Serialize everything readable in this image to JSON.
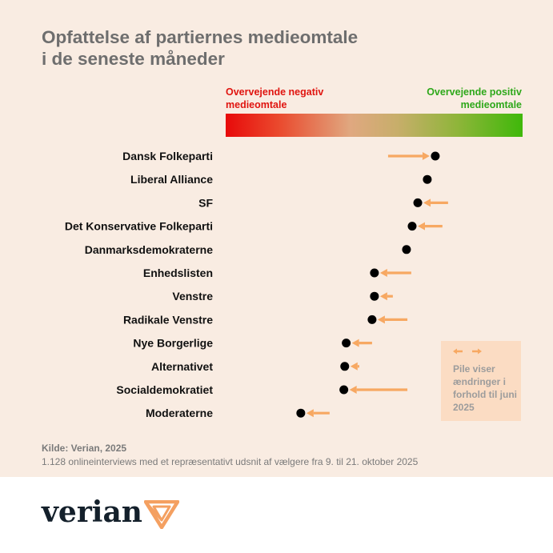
{
  "title_lines": [
    "Opfattelse af partiernes medieomtale",
    "i de seneste måneder"
  ],
  "scale": {
    "negative_label": "Overvejende negativ medieomtale",
    "positive_label": "Overvejende positiv medieomtale"
  },
  "note": {
    "text": "Pile viser ændringer i forhold til juni 2025"
  },
  "source": "Kilde: Verian, 2025",
  "methodology": "1.128 onlineinterviews med et repræsentativt udsnit af vælgere fra 9. til 21. oktober 2025",
  "logo": {
    "text": "verian"
  },
  "colors": {
    "negative": "#e80a0a",
    "positive": "#3fb80a",
    "arrow": "#f7a862",
    "dot": "#000000",
    "background": "#f9ece2"
  },
  "chart_data": {
    "type": "scatter",
    "title": "Opfattelse af partiernes medieomtale i de seneste måneder",
    "xlim": [
      0,
      100
    ],
    "x_axis": "negative (0) to positive (100) media coverage, estimated position on gradient scale",
    "categories": [
      "Dansk Folkeparti",
      "Liberal Alliance",
      "SF",
      "Det Konservative Folkeparti",
      "Danmarksdemokraterne",
      "Enhedslisten",
      "Venstre",
      "Radikale Venstre",
      "Nye Borgerlige",
      "Alternativet",
      "Socialdemokratiet",
      "Moderaterne"
    ],
    "series": [
      {
        "name": "Oktober 2025",
        "values": [
          70.6,
          67.9,
          64.7,
          62.8,
          60.9,
          50.1,
          50.1,
          49.3,
          40.6,
          40.1,
          39.8,
          25.3
        ]
      },
      {
        "name": "Juni 2025",
        "values": [
          54.7,
          67.9,
          74.9,
          73.0,
          60.9,
          62.5,
          56.3,
          61.2,
          49.3,
          45.0,
          61.2,
          35.0
        ]
      }
    ]
  }
}
